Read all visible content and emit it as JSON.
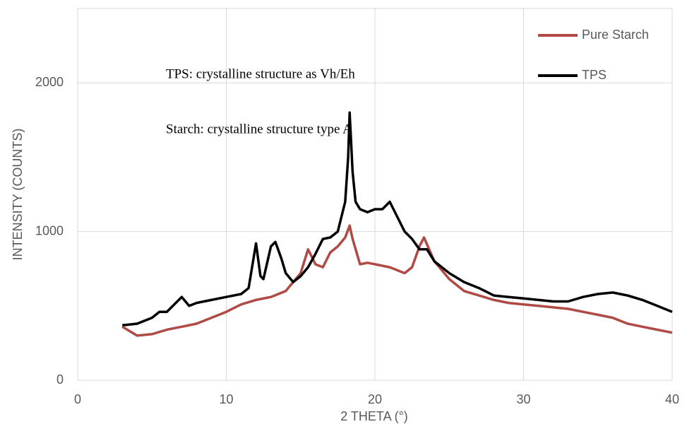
{
  "chart_data": {
    "type": "line",
    "xlabel": "2 THETA (°)",
    "ylabel": "INTENSITY  (COUNTS)",
    "annotations": [
      "TPS: crystalline structure as Vh/Eh",
      "Starch: crystalline structure type A"
    ],
    "xlim": [
      0,
      40
    ],
    "xticks": [
      0,
      10,
      20,
      30,
      40
    ],
    "ylim": [
      0,
      2500
    ],
    "yticks": [
      0,
      1000,
      2000
    ],
    "grid": true,
    "legend": "upper right",
    "series": [
      {
        "name": "Pure Starch",
        "color": "#b04a45",
        "x": [
          3,
          4,
          5,
          6,
          7,
          8,
          9,
          10,
          11,
          12,
          13,
          14,
          15,
          15.5,
          16,
          16.5,
          17,
          17.5,
          18,
          18.3,
          18.5,
          19,
          19.5,
          20,
          21,
          22,
          22.5,
          23,
          23.3,
          24,
          25,
          26,
          27,
          28,
          29,
          30,
          31,
          32,
          33,
          34,
          35,
          36,
          37,
          38,
          39,
          40
        ],
        "values": [
          360,
          300,
          310,
          340,
          360,
          380,
          420,
          460,
          510,
          540,
          560,
          600,
          720,
          880,
          780,
          760,
          860,
          900,
          960,
          1040,
          950,
          780,
          790,
          780,
          760,
          720,
          760,
          900,
          960,
          800,
          680,
          600,
          570,
          540,
          520,
          510,
          500,
          490,
          480,
          460,
          440,
          420,
          380,
          360,
          340,
          320
        ]
      },
      {
        "name": "TPS",
        "color": "#000000",
        "x": [
          3,
          4,
          5,
          5.5,
          6,
          7,
          7.5,
          8,
          9,
          10,
          11,
          11.5,
          12,
          12.3,
          12.5,
          13,
          13.3,
          13.7,
          14,
          14.5,
          15,
          15.5,
          16,
          16.5,
          17,
          17.5,
          18,
          18.2,
          18.3,
          18.5,
          18.7,
          19,
          19.5,
          20,
          20.5,
          21,
          21.5,
          22,
          22.5,
          23,
          23.5,
          24,
          25,
          26,
          27,
          28,
          29,
          30,
          31,
          32,
          33,
          34,
          35,
          36,
          37,
          38,
          39,
          40
        ],
        "values": [
          370,
          380,
          420,
          460,
          460,
          560,
          500,
          520,
          540,
          560,
          580,
          620,
          920,
          700,
          680,
          900,
          930,
          820,
          720,
          660,
          700,
          760,
          850,
          950,
          960,
          1000,
          1200,
          1500,
          1800,
          1400,
          1200,
          1150,
          1130,
          1150,
          1150,
          1200,
          1100,
          1000,
          950,
          880,
          880,
          800,
          720,
          660,
          620,
          570,
          560,
          550,
          540,
          530,
          530,
          560,
          580,
          590,
          570,
          540,
          500,
          460
        ]
      }
    ]
  }
}
